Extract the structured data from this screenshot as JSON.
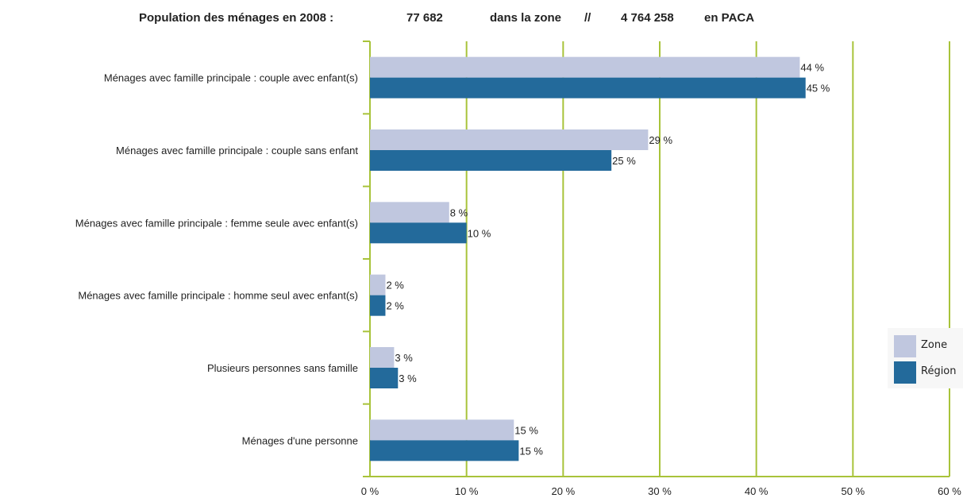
{
  "header": {
    "label": "Population des ménages en 2008 :",
    "zone_value": "77 682",
    "zone_label": "dans la zone",
    "separator": "//",
    "region_value": "4 764 258",
    "region_label": "en PACA"
  },
  "colors": {
    "zone": "#c0c7df",
    "region": "#236a9b",
    "grid": "#a8c33a",
    "axis": "#a8c33a"
  },
  "chart_data": {
    "type": "bar",
    "orientation": "horizontal",
    "categories": [
      "Ménages avec famille principale : couple avec enfant(s)",
      "Ménages avec famille principale : couple sans enfant",
      "Ménages avec famille principale : femme seule avec enfant(s)",
      "Ménages avec famille principale : homme seul avec enfant(s)",
      "Plusieurs personnes sans famille",
      "Ménages d'une personne"
    ],
    "series": [
      {
        "name": "Zone",
        "values": [
          44.5,
          28.8,
          8.2,
          1.6,
          2.5,
          14.9
        ],
        "labels": [
          "44 %",
          "29 %",
          "8 %",
          "2 %",
          "3 %",
          "15 %"
        ]
      },
      {
        "name": "Région",
        "values": [
          45.1,
          25.0,
          10.0,
          1.6,
          2.9,
          15.4
        ],
        "labels": [
          "45 %",
          "25 %",
          "10 %",
          "2 %",
          "3 %",
          "15 %"
        ]
      }
    ],
    "xlim": [
      0,
      60
    ],
    "xticks": [
      0,
      10,
      20,
      30,
      40,
      50,
      60
    ],
    "xtick_labels": [
      "0 %",
      "10 %",
      "20 %",
      "30 %",
      "40 %",
      "50 %",
      "60 %"
    ],
    "grid": true,
    "legend_position": "right"
  }
}
